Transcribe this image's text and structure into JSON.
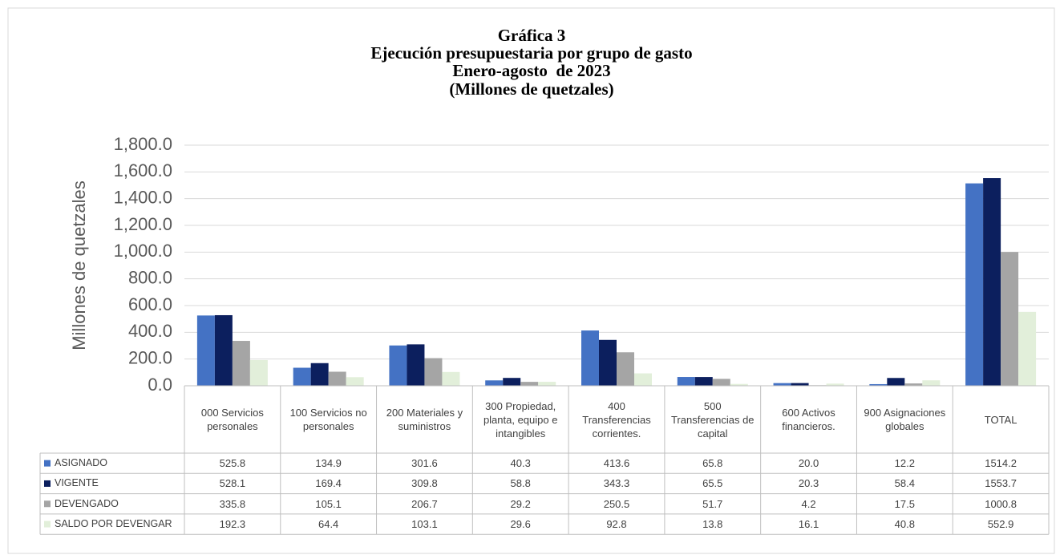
{
  "chart_data": {
    "type": "bar",
    "title": "Gráfica 3",
    "subtitle": [
      "Ejecución presupuestaria por grupo de gasto",
      "Enero-agosto  de 2023",
      "(Millones de quetzales)"
    ],
    "y_label": "Millones de quetzales",
    "categories": [
      "000 Servicios personales",
      "100 Servicios no personales",
      "200 Materiales y suministros",
      "300 Propiedad, planta, equipo e intangibles",
      "400 Transferencias corrientes.",
      "500 Transferencias de capital",
      "600 Activos financieros.",
      "900 Asignaciones globales",
      "TOTAL"
    ],
    "series": [
      {
        "name": "ASIGNADO",
        "color": "#4472c4",
        "values": [
          525.8,
          134.9,
          301.6,
          40.3,
          413.6,
          65.8,
          20.0,
          12.2,
          1514.2
        ],
        "value_labels": [
          "525.8",
          "134.9",
          "301.6",
          "40.3",
          "413.6",
          "65.8",
          "20.0",
          "12.2",
          "1514.2"
        ]
      },
      {
        "name": "VIGENTE",
        "color": "#0c1f5e",
        "values": [
          528.1,
          169.4,
          309.8,
          58.8,
          343.3,
          65.5,
          20.3,
          58.4,
          1553.7
        ],
        "value_labels": [
          "528.1",
          "169.4",
          "309.8",
          "58.8",
          "343.3",
          "65.5",
          "20.3",
          "58.4",
          "1553.7"
        ]
      },
      {
        "name": "DEVENGADO",
        "color": "#a5a5a5",
        "values": [
          335.8,
          105.1,
          206.7,
          29.2,
          250.5,
          51.7,
          4.2,
          17.5,
          1000.8
        ],
        "value_labels": [
          "335.8",
          "105.1",
          "206.7",
          "29.2",
          "250.5",
          "51.7",
          "4.2",
          "17.5",
          "1000.8"
        ]
      },
      {
        "name": "SALDO POR DEVENGAR",
        "color": "#e2efda",
        "values": [
          192.3,
          64.4,
          103.1,
          29.6,
          92.8,
          13.8,
          16.1,
          40.8,
          552.9
        ],
        "value_labels": [
          "192.3",
          "64.4",
          "103.1",
          "29.6",
          "92.8",
          "13.8",
          "16.1",
          "40.8",
          "552.9"
        ]
      }
    ],
    "ylim": [
      0,
      1800
    ],
    "yticks": [
      {
        "value": 0,
        "label": "0.0"
      },
      {
        "value": 200,
        "label": "200.0"
      },
      {
        "value": 400,
        "label": "400.0"
      },
      {
        "value": 600,
        "label": "600.0"
      },
      {
        "value": 800,
        "label": "800.0"
      },
      {
        "value": 1000,
        "label": "1,000.0"
      },
      {
        "value": 1200,
        "label": "1,200.0"
      },
      {
        "value": 1400,
        "label": "1,400.0"
      },
      {
        "value": 1600,
        "label": "1,600.0"
      },
      {
        "value": 1800,
        "label": "1,800.0"
      }
    ],
    "grid": true
  }
}
